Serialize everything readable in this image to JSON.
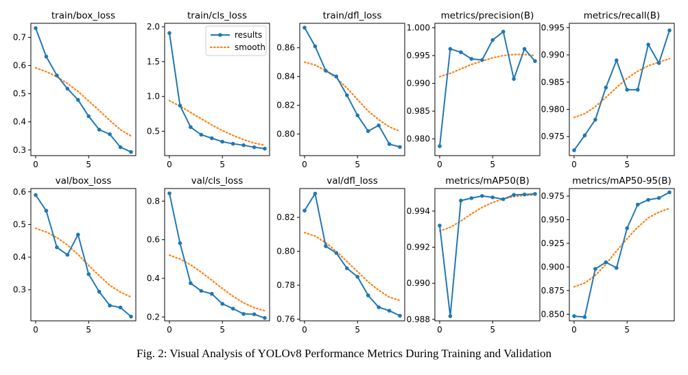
{
  "caption": "Fig. 2: Visual Analysis of YOLOv8 Performance Metrics During Training and Validation",
  "colors": {
    "results": "#1f77b4",
    "smooth": "#ff7f0e",
    "axis": "#000000"
  },
  "legend": {
    "placement": "top-right",
    "panel": 1,
    "entries": [
      "results",
      "smooth"
    ]
  },
  "chart_data": [
    {
      "type": "line",
      "title": "train/box_loss",
      "x": [
        0,
        1,
        2,
        3,
        4,
        5,
        6,
        7,
        8,
        9
      ],
      "xticks": [
        0,
        5
      ],
      "ylim": [
        0.28,
        0.75
      ],
      "yticks": [
        0.3,
        0.4,
        0.5,
        0.6,
        0.7
      ],
      "tick_decimals": 1,
      "series": [
        {
          "name": "results",
          "values": [
            0.733,
            0.632,
            0.565,
            0.518,
            0.478,
            0.42,
            0.372,
            0.356,
            0.31,
            0.293
          ]
        },
        {
          "name": "smooth",
          "values": [
            0.592,
            0.578,
            0.56,
            0.536,
            0.508,
            0.474,
            0.44,
            0.405,
            0.372,
            0.35
          ]
        }
      ]
    },
    {
      "type": "line",
      "title": "train/cls_loss",
      "x": [
        0,
        1,
        2,
        3,
        4,
        5,
        6,
        7,
        8,
        9
      ],
      "xticks": [
        0,
        5
      ],
      "ylim": [
        0.15,
        2.05
      ],
      "yticks": [
        0.5,
        1.0,
        1.5,
        2.0
      ],
      "tick_decimals": 1,
      "series": [
        {
          "name": "results",
          "values": [
            1.91,
            0.87,
            0.56,
            0.45,
            0.4,
            0.35,
            0.32,
            0.3,
            0.27,
            0.25
          ]
        },
        {
          "name": "smooth",
          "values": [
            0.94,
            0.86,
            0.77,
            0.68,
            0.59,
            0.51,
            0.44,
            0.38,
            0.33,
            0.3
          ]
        }
      ]
    },
    {
      "type": "line",
      "title": "train/dfl_loss",
      "x": [
        0,
        1,
        2,
        3,
        4,
        5,
        6,
        7,
        8,
        9
      ],
      "xticks": [
        0,
        5
      ],
      "ylim": [
        0.785,
        0.877
      ],
      "yticks": [
        0.8,
        0.82,
        0.84,
        0.86
      ],
      "tick_decimals": 2,
      "series": [
        {
          "name": "results",
          "values": [
            0.874,
            0.861,
            0.844,
            0.84,
            0.827,
            0.813,
            0.802,
            0.806,
            0.793,
            0.791
          ]
        },
        {
          "name": "smooth",
          "values": [
            0.85,
            0.848,
            0.844,
            0.839,
            0.832,
            0.824,
            0.816,
            0.81,
            0.805,
            0.802
          ]
        }
      ]
    },
    {
      "type": "line",
      "title": "metrics/precision(B)",
      "x": [
        0,
        1,
        2,
        3,
        4,
        5,
        6,
        7,
        8,
        9
      ],
      "xticks": [
        0,
        5
      ],
      "ylim": [
        0.977,
        1.0008
      ],
      "yticks": [
        0.98,
        0.985,
        0.99,
        0.995,
        1.0
      ],
      "tick_decimals": 3,
      "series": [
        {
          "name": "results",
          "values": [
            0.9787,
            0.9962,
            0.9956,
            0.9944,
            0.9942,
            0.9978,
            0.9993,
            0.9908,
            0.9962,
            0.994
          ]
        },
        {
          "name": "smooth",
          "values": [
            0.9912,
            0.9918,
            0.9926,
            0.9934,
            0.994,
            0.9946,
            0.995,
            0.9952,
            0.9952,
            0.995
          ]
        }
      ]
    },
    {
      "type": "line",
      "title": "metrics/recall(B)",
      "x": [
        0,
        1,
        2,
        3,
        4,
        5,
        6,
        7,
        8,
        9
      ],
      "xticks": [
        0,
        5
      ],
      "ylim": [
        0.9715,
        0.9958
      ],
      "yticks": [
        0.975,
        0.98,
        0.985,
        0.99,
        0.995
      ],
      "tick_decimals": 3,
      "series": [
        {
          "name": "results",
          "values": [
            0.9725,
            0.9752,
            0.9781,
            0.984,
            0.989,
            0.9836,
            0.9836,
            0.9919,
            0.9885,
            0.9945
          ]
        },
        {
          "name": "smooth",
          "values": [
            0.9785,
            0.9792,
            0.9805,
            0.9822,
            0.984,
            0.9857,
            0.987,
            0.988,
            0.9887,
            0.9893
          ]
        }
      ]
    },
    {
      "type": "line",
      "title": "val/box_loss",
      "x": [
        0,
        1,
        2,
        3,
        4,
        5,
        6,
        7,
        8,
        9
      ],
      "xticks": [
        0,
        5
      ],
      "ylim": [
        0.205,
        0.61
      ],
      "yticks": [
        0.3,
        0.4,
        0.5,
        0.6
      ],
      "tick_decimals": 1,
      "series": [
        {
          "name": "results",
          "values": [
            0.59,
            0.542,
            0.43,
            0.407,
            0.469,
            0.348,
            0.294,
            0.252,
            0.246,
            0.218
          ]
        },
        {
          "name": "smooth",
          "values": [
            0.488,
            0.477,
            0.46,
            0.437,
            0.408,
            0.375,
            0.343,
            0.314,
            0.293,
            0.278
          ]
        }
      ]
    },
    {
      "type": "line",
      "title": "val/cls_loss",
      "x": [
        0,
        1,
        2,
        3,
        4,
        5,
        6,
        7,
        8,
        9
      ],
      "xticks": [
        0,
        5
      ],
      "ylim": [
        0.18,
        0.865
      ],
      "yticks": [
        0.2,
        0.4,
        0.6,
        0.8
      ],
      "tick_decimals": 1,
      "series": [
        {
          "name": "results",
          "values": [
            0.84,
            0.582,
            0.375,
            0.335,
            0.32,
            0.268,
            0.243,
            0.216,
            0.214,
            0.195
          ]
        },
        {
          "name": "smooth",
          "values": [
            0.52,
            0.5,
            0.47,
            0.432,
            0.39,
            0.347,
            0.307,
            0.273,
            0.248,
            0.232
          ]
        }
      ]
    },
    {
      "type": "line",
      "title": "val/dfl_loss",
      "x": [
        0,
        1,
        2,
        3,
        4,
        5,
        6,
        7,
        8,
        9
      ],
      "xticks": [
        0,
        5
      ],
      "ylim": [
        0.759,
        0.837
      ],
      "yticks": [
        0.76,
        0.78,
        0.8,
        0.82
      ],
      "tick_decimals": 2,
      "series": [
        {
          "name": "results",
          "values": [
            0.824,
            0.834,
            0.803,
            0.799,
            0.79,
            0.785,
            0.774,
            0.767,
            0.765,
            0.762
          ]
        },
        {
          "name": "smooth",
          "values": [
            0.811,
            0.809,
            0.805,
            0.8,
            0.794,
            0.788,
            0.782,
            0.777,
            0.773,
            0.771
          ]
        }
      ]
    },
    {
      "type": "line",
      "title": "metrics/mAP50(B)",
      "x": [
        0,
        1,
        2,
        3,
        4,
        5,
        6,
        7,
        8,
        9
      ],
      "xticks": [
        0,
        5
      ],
      "ylim": [
        0.98792,
        0.99525
      ],
      "yticks": [
        0.988,
        0.99,
        0.992,
        0.994
      ],
      "tick_decimals": 3,
      "series": [
        {
          "name": "results",
          "values": [
            0.9932,
            0.98818,
            0.99458,
            0.99472,
            0.99484,
            0.99476,
            0.99466,
            0.9949,
            0.99492,
            0.99495
          ]
        },
        {
          "name": "smooth",
          "values": [
            0.9929,
            0.9931,
            0.99345,
            0.99385,
            0.9942,
            0.99448,
            0.99468,
            0.9948,
            0.99487,
            0.9949
          ]
        }
      ]
    },
    {
      "type": "line",
      "title": "metrics/mAP50-95(B)",
      "x": [
        0,
        1,
        2,
        3,
        4,
        5,
        6,
        7,
        8,
        9
      ],
      "xticks": [
        0,
        5
      ],
      "ylim": [
        0.843,
        0.983
      ],
      "yticks": [
        0.85,
        0.875,
        0.9,
        0.925,
        0.95,
        0.975
      ],
      "tick_decimals": 3,
      "series": [
        {
          "name": "results",
          "values": [
            0.848,
            0.847,
            0.898,
            0.905,
            0.899,
            0.941,
            0.966,
            0.971,
            0.973,
            0.979
          ]
        },
        {
          "name": "smooth",
          "values": [
            0.879,
            0.883,
            0.891,
            0.903,
            0.917,
            0.93,
            0.942,
            0.952,
            0.958,
            0.962
          ]
        }
      ]
    }
  ]
}
